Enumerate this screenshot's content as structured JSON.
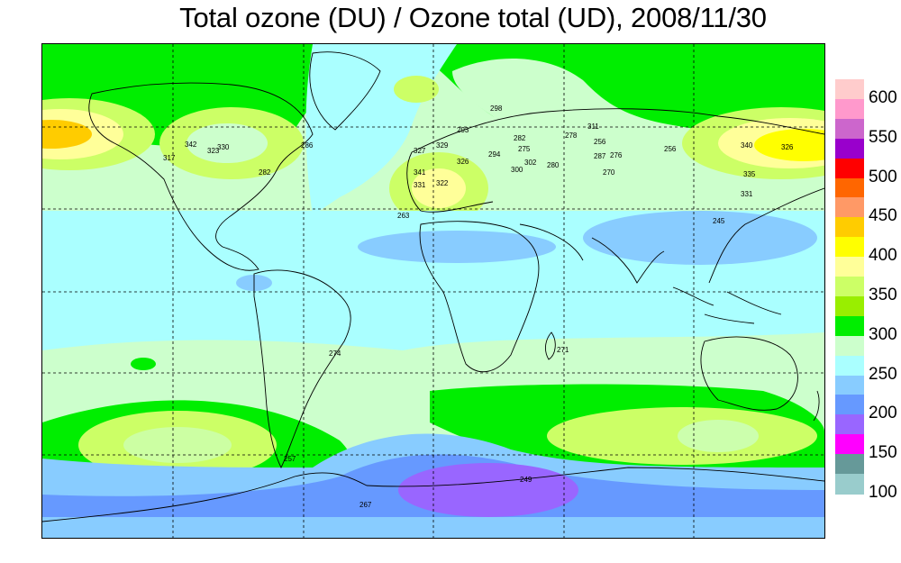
{
  "title": "Total ozone (DU) / Ozone total (UD), 2008/11/30",
  "legend": {
    "labels": [
      "600",
      "550",
      "500",
      "450",
      "400",
      "350",
      "300",
      "250",
      "200",
      "150",
      "100"
    ],
    "colors": [
      "#ffcccc",
      "#ff99cc",
      "#cc66cc",
      "#9900cc",
      "#ff0000",
      "#ff6600",
      "#ff9966",
      "#ffcc00",
      "#ffff00",
      "#ffff99",
      "#ccff66",
      "#99ee00",
      "#00ee00",
      "#ccffcc",
      "#aaffff",
      "#88ccff",
      "#6699ff",
      "#9966ff",
      "#ff00ff",
      "#669999",
      "#99cccc"
    ]
  },
  "stations": [
    {
      "label": "342"
    },
    {
      "label": "317"
    },
    {
      "label": "323"
    },
    {
      "label": "330"
    },
    {
      "label": "282"
    },
    {
      "label": "286"
    },
    {
      "label": "293"
    },
    {
      "label": "298"
    },
    {
      "label": "282"
    },
    {
      "label": "278"
    },
    {
      "label": "311"
    },
    {
      "label": "256"
    },
    {
      "label": "275"
    },
    {
      "label": "276"
    },
    {
      "label": "287"
    },
    {
      "label": "270"
    },
    {
      "label": "302"
    },
    {
      "label": "280"
    },
    {
      "label": "300"
    },
    {
      "label": "294"
    },
    {
      "label": "327"
    },
    {
      "label": "329"
    },
    {
      "label": "341"
    },
    {
      "label": "326"
    },
    {
      "label": "322"
    },
    {
      "label": "331"
    },
    {
      "label": "263"
    },
    {
      "label": "256"
    },
    {
      "label": "340"
    },
    {
      "label": "326"
    },
    {
      "label": "335"
    },
    {
      "label": "331"
    },
    {
      "label": "245"
    },
    {
      "label": "274"
    },
    {
      "label": "271"
    },
    {
      "label": "257"
    },
    {
      "label": "249"
    },
    {
      "label": "267"
    }
  ]
}
